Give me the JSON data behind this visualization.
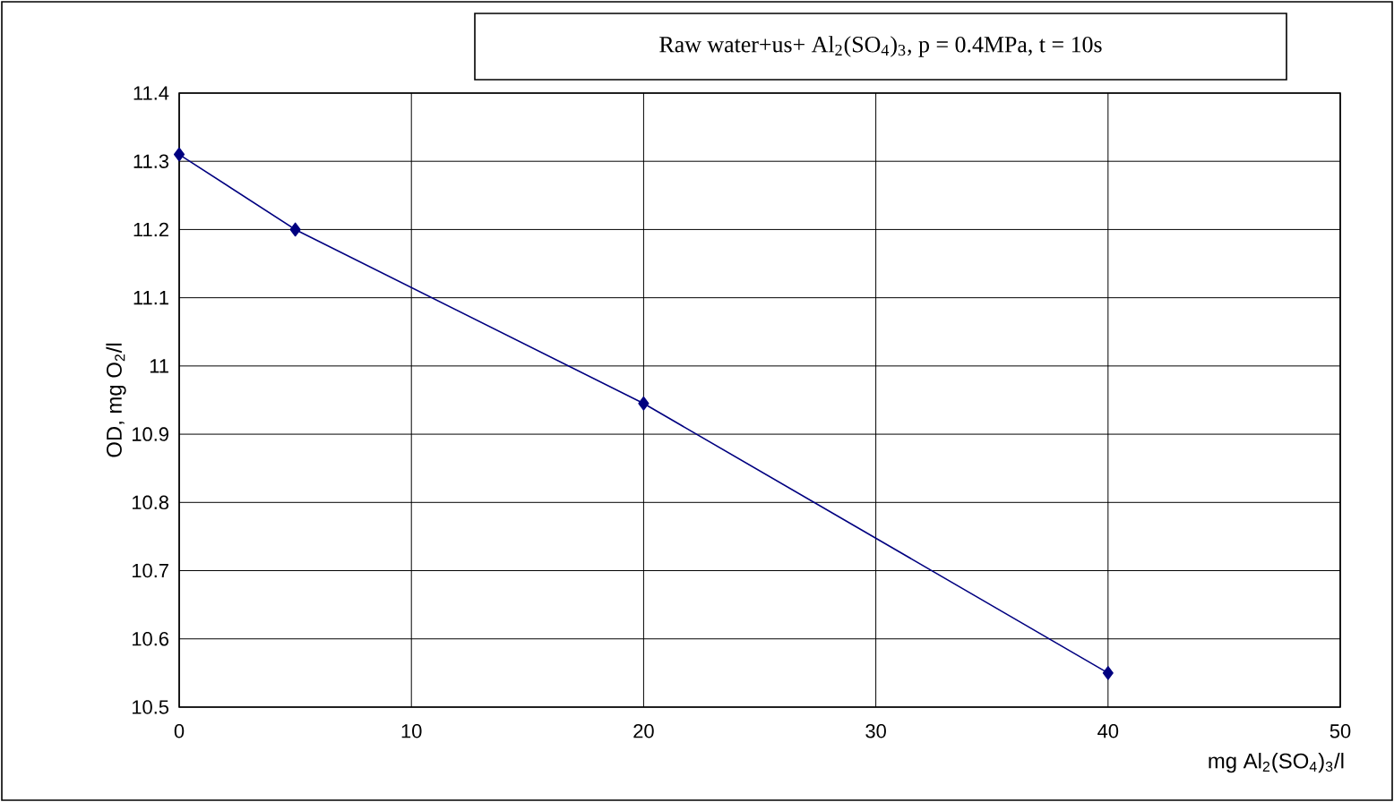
{
  "chart_data": {
    "type": "line",
    "title": "Raw water+us+ Al$_{2}$(SO$_{4}$)$_{3}$, p = 0.4MPa, t = 10s",
    "xlabel": "mg Al$_{2}$(SO$_{4}$)$_{3}$/l",
    "ylabel": "OD, mg O$_{2}$/l",
    "x": [
      0,
      5,
      20,
      40
    ],
    "series": [
      {
        "color": "#000080",
        "values": [
          11.31,
          11.2,
          10.945,
          10.55
        ]
      }
    ],
    "xlim": [
      0,
      50
    ],
    "xticks": [
      0,
      10,
      20,
      30,
      40,
      50
    ],
    "ylim": [
      10.5,
      11.4
    ],
    "yticks": [
      10.5,
      10.6,
      10.7,
      10.8,
      10.9,
      11,
      11.1,
      11.2,
      11.3,
      11.4
    ],
    "grid": true,
    "marker": "diamond",
    "line_style": "solid"
  }
}
